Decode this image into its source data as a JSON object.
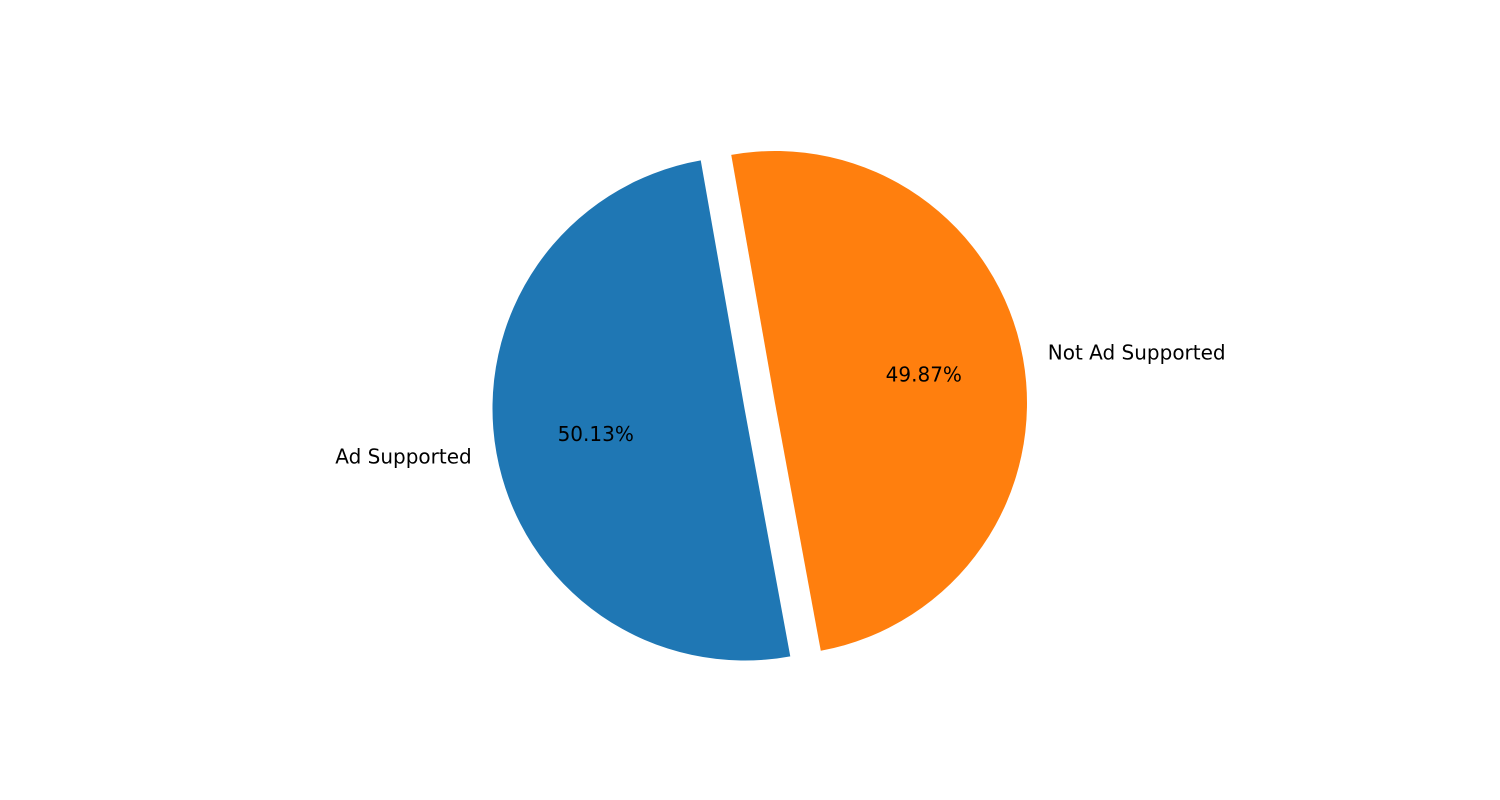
{
  "chart_data": {
    "type": "pie",
    "title": "",
    "slices": [
      {
        "label": "Ad Supported",
        "pct_label": "50.13%",
        "value": 50.13,
        "color": "#1f77b4",
        "exploded": true
      },
      {
        "label": "Not Ad Supported",
        "pct_label": "49.87%",
        "value": 49.87,
        "color": "#ff7f0e",
        "exploded": false
      }
    ],
    "legend": "none"
  }
}
